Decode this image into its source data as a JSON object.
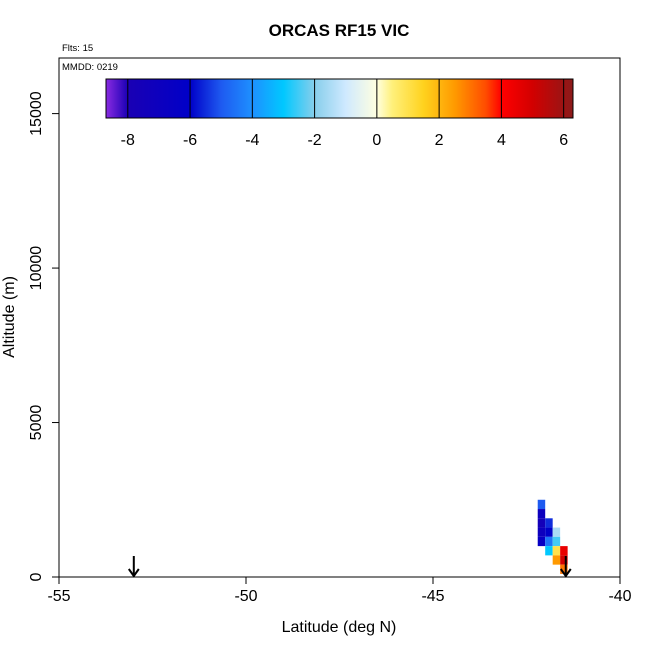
{
  "chart_data": {
    "type": "heatmap",
    "title": "ORCAS RF15 VIC",
    "xlabel": "Latitude (deg N)",
    "ylabel": "Altitude (m)",
    "xlim": [
      -55,
      -40
    ],
    "ylim": [
      0,
      16800
    ],
    "x_ticks": [
      -55,
      -50,
      -45,
      -40
    ],
    "y_ticks": [
      0,
      5000,
      10000,
      15000
    ],
    "grid": false,
    "annotations": {
      "flights": "Flts: 15",
      "date": "MMDD: 0219"
    },
    "colorbar": {
      "range": [
        -8.7,
        6.3
      ],
      "ticks": [
        -8,
        -6,
        -4,
        -2,
        0,
        2,
        4,
        6
      ],
      "stops": [
        {
          "v": -8.7,
          "c": "#8a2be2"
        },
        {
          "v": -8.0,
          "c": "#1a00b4"
        },
        {
          "v": -6.0,
          "c": "#0000c8"
        },
        {
          "v": -5.0,
          "c": "#1e5af0"
        },
        {
          "v": -4.0,
          "c": "#1e90ff"
        },
        {
          "v": -3.0,
          "c": "#00c8ff"
        },
        {
          "v": -2.0,
          "c": "#87ceeb"
        },
        {
          "v": -1.0,
          "c": "#cfe9ff"
        },
        {
          "v": 0.0,
          "c": "#ffffe0"
        },
        {
          "v": 0.5,
          "c": "#fff07a"
        },
        {
          "v": 1.5,
          "c": "#ffd21e"
        },
        {
          "v": 2.5,
          "c": "#ff9a00"
        },
        {
          "v": 3.5,
          "c": "#ff4c00"
        },
        {
          "v": 4.0,
          "c": "#ff0000"
        },
        {
          "v": 5.0,
          "c": "#d20000"
        },
        {
          "v": 6.3,
          "c": "#8b1a1a"
        }
      ]
    },
    "arrows_lat": [
      -53.0,
      -41.45
    ],
    "cells": [
      {
        "lat": -42.1,
        "alt": 2350,
        "value": -5.0
      },
      {
        "lat": -42.1,
        "alt": 2050,
        "value": -7.0
      },
      {
        "lat": -42.1,
        "alt": 1750,
        "value": -7.5
      },
      {
        "lat": -42.1,
        "alt": 1450,
        "value": -7.0
      },
      {
        "lat": -42.1,
        "alt": 1150,
        "value": -6.5
      },
      {
        "lat": -41.9,
        "alt": 1750,
        "value": -5.5
      },
      {
        "lat": -41.9,
        "alt": 1450,
        "value": -6.0
      },
      {
        "lat": -41.9,
        "alt": 1150,
        "value": -4.5
      },
      {
        "lat": -41.9,
        "alt": 850,
        "value": -3.0
      },
      {
        "lat": -41.7,
        "alt": 1450,
        "value": -1.5
      },
      {
        "lat": -41.7,
        "alt": 1150,
        "value": -2.5
      },
      {
        "lat": -41.7,
        "alt": 850,
        "value": 1.0
      },
      {
        "lat": -41.7,
        "alt": 550,
        "value": 2.5
      },
      {
        "lat": -41.5,
        "alt": 850,
        "value": 4.5
      },
      {
        "lat": -41.5,
        "alt": 550,
        "value": 5.0
      },
      {
        "lat": -41.5,
        "alt": 250,
        "value": 3.0
      }
    ],
    "cell_size": {
      "lat": 0.2,
      "alt": 300
    }
  }
}
